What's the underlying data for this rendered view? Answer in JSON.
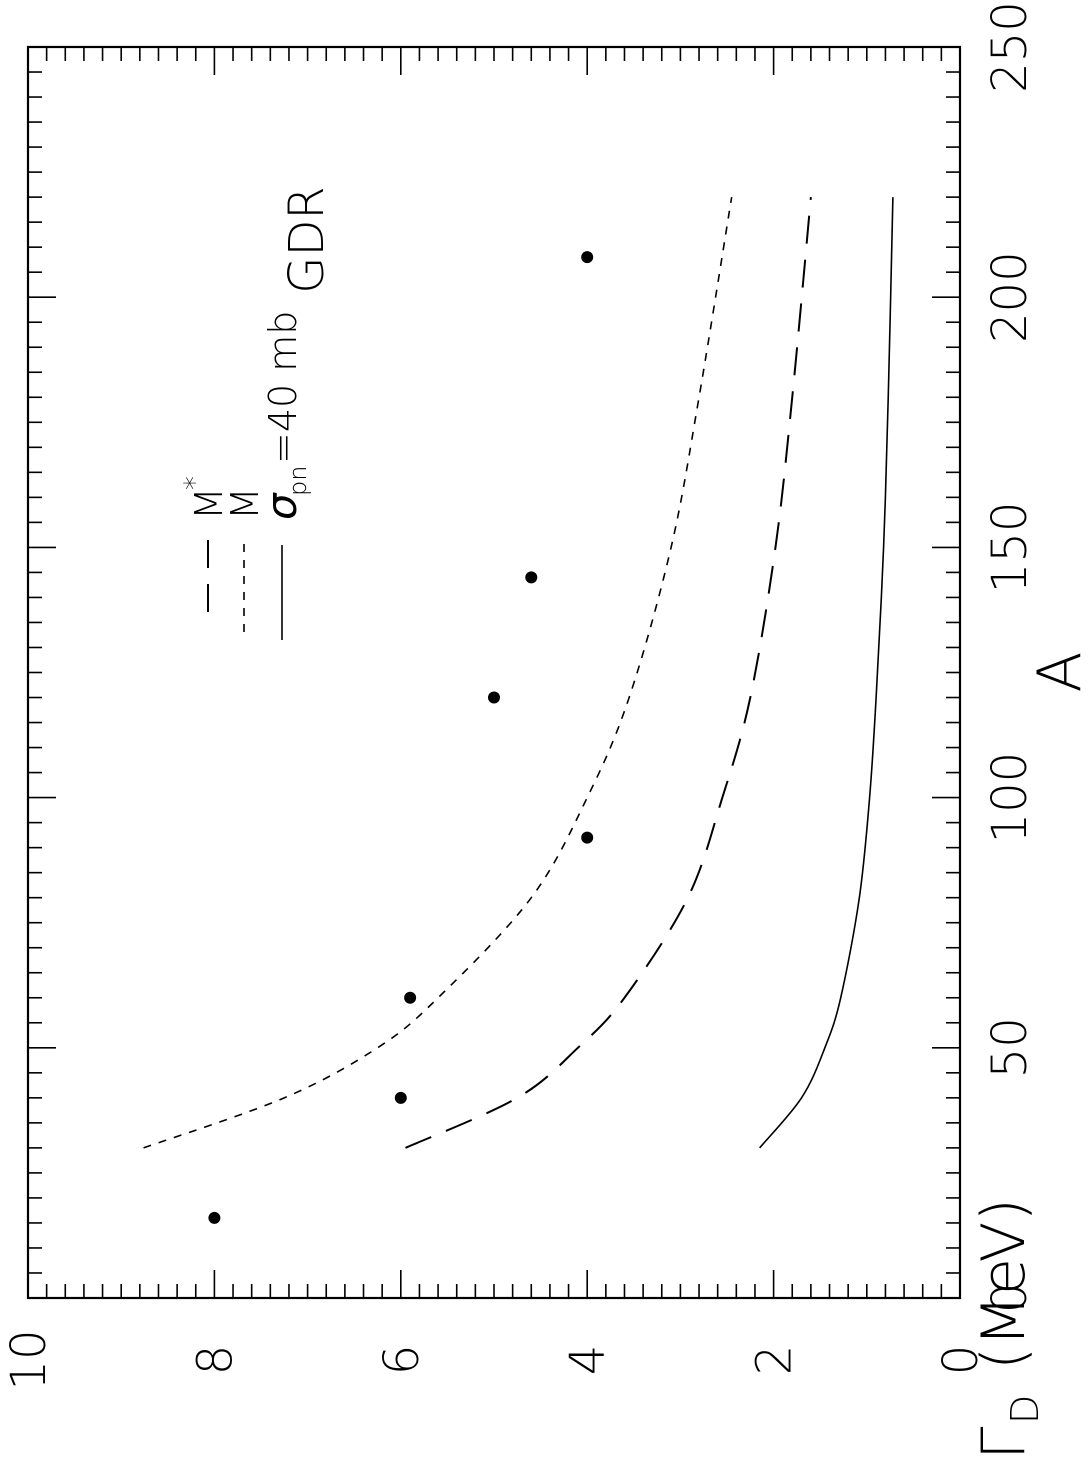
{
  "chart_data": {
    "type": "scatter",
    "title": "",
    "xlabel": "A",
    "ylabel": "Γ",
    "ylabel_sub": "D",
    "ylabel_unit": "(MeV)",
    "xlim": [
      0,
      250
    ],
    "ylim": [
      0,
      10
    ],
    "x_tick_labels": [
      "0",
      "50",
      "100",
      "150",
      "200",
      "250"
    ],
    "y_tick_labels": [
      "0",
      "2",
      "4",
      "6",
      "8",
      "10"
    ],
    "orientation": "rotated 90° counter-clockwise (x axis vertical on right, y axis horizontal at bottom)",
    "annotation": "GDR",
    "legend": [
      {
        "label": "M",
        "sup": "*",
        "style": "long-dashed"
      },
      {
        "label": "M",
        "style": "short-dashed"
      },
      {
        "label": "σ",
        "sub": "pn",
        "suffix": "=40  mb",
        "style": "solid"
      }
    ],
    "points": {
      "x": [
        16,
        40,
        60,
        92,
        120,
        144,
        208
      ],
      "y": [
        8.0,
        6.0,
        5.9,
        4.0,
        5.0,
        4.6,
        4.0
      ]
    },
    "series": [
      {
        "style": "short-dashed",
        "x": [
          30,
          40,
          50,
          60,
          80,
          100,
          120,
          150,
          180,
          220
        ],
        "y": [
          8.76,
          7.25,
          6.25,
          5.6,
          4.6,
          4.0,
          3.55,
          3.1,
          2.8,
          2.45
        ]
      },
      {
        "style": "long-dashed",
        "x": [
          30,
          40,
          50,
          60,
          80,
          100,
          120,
          150,
          180,
          220
        ],
        "y": [
          5.95,
          4.75,
          4.1,
          3.6,
          2.92,
          2.55,
          2.25,
          1.98,
          1.8,
          1.6
        ]
      },
      {
        "style": "solid",
        "x": [
          30,
          40,
          50,
          60,
          80,
          100,
          120,
          150,
          180,
          220
        ],
        "y": [
          2.15,
          1.7,
          1.45,
          1.28,
          1.08,
          0.97,
          0.9,
          0.82,
          0.77,
          0.72
        ]
      }
    ]
  }
}
